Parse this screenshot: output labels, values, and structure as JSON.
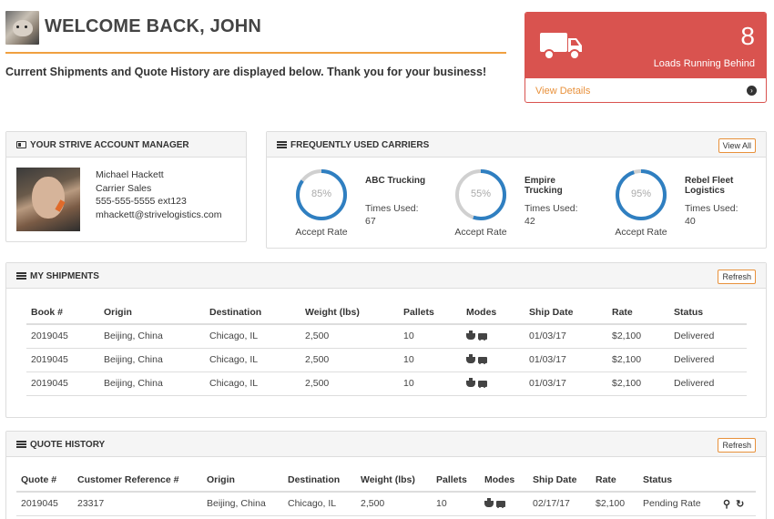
{
  "header": {
    "welcome": "WELCOME BACK, JOHN",
    "subtitle": "Current Shipments and Quote History are displayed below. Thank you for your business!"
  },
  "alert": {
    "count": "8",
    "caption": "Loads Running Behind",
    "link": "View Details",
    "color": "#d9534f",
    "icon": "truck-icon"
  },
  "manager": {
    "title": "YOUR STRIVE ACCOUNT MANAGER",
    "name": "Michael Hackett",
    "role": "Carrier Sales",
    "phone": "555-555-5555 ext123",
    "email": "mhackett@strivelogistics.com"
  },
  "carriers": {
    "title": "FREQUENTLY USED CARRIERS",
    "view_all": "View All",
    "items": [
      {
        "name_line1": "ABC",
        "name_line2": "Trucking",
        "times_label": "Times Used:",
        "times": "67",
        "accept_label": "Accept Rate",
        "pct_label": "85%",
        "pct": 0.85
      },
      {
        "name_line1": "Empire",
        "name_line2": "Trucking",
        "times_label": "Times Used:",
        "times": "42",
        "accept_label": "Accept Rate",
        "pct_label": "55%",
        "pct": 0.55
      },
      {
        "name_line1": "Rebel Fleet",
        "name_line2": "Logistics",
        "times_label": "Times Used:",
        "times": "40",
        "accept_label": "Accept Rate",
        "pct_label": "95%",
        "pct": 0.95
      }
    ]
  },
  "shipments": {
    "title": "MY SHIPMENTS",
    "refresh": "Refresh",
    "columns": [
      "Book #",
      "Origin",
      "Destination",
      "Weight (lbs)",
      "Pallets",
      "Modes",
      "Ship Date",
      "Rate",
      "Status"
    ],
    "rows": [
      [
        "2019045",
        "Beijing, China",
        "Chicago, IL",
        "2,500",
        "10",
        "",
        "01/03/17",
        "$2,100",
        "Delivered"
      ],
      [
        "2019045",
        "Beijing, China",
        "Chicago, IL",
        "2,500",
        "10",
        "",
        "01/03/17",
        "$2,100",
        "Delivered"
      ],
      [
        "2019045",
        "Beijing, China",
        "Chicago, IL",
        "2,500",
        "10",
        "",
        "01/03/17",
        "$2,100",
        "Delivered"
      ]
    ]
  },
  "quotes": {
    "title": "QUOTE HISTORY",
    "refresh": "Refresh",
    "columns": [
      "Quote #",
      "Customer Reference #",
      "Origin",
      "Destination",
      "Weight (lbs)",
      "Pallets",
      "Modes",
      "Ship Date",
      "Rate",
      "Status"
    ],
    "rows": [
      [
        "2019045",
        "23317",
        "Beijing, China",
        "Chicago, IL",
        "2,500",
        "10",
        "",
        "02/17/17",
        "$2,100",
        "Pending Rate"
      ]
    ]
  },
  "colors": {
    "accent": "#e8913b",
    "ring": "#2f7fc1",
    "ring_track": "#d0d0d0"
  }
}
